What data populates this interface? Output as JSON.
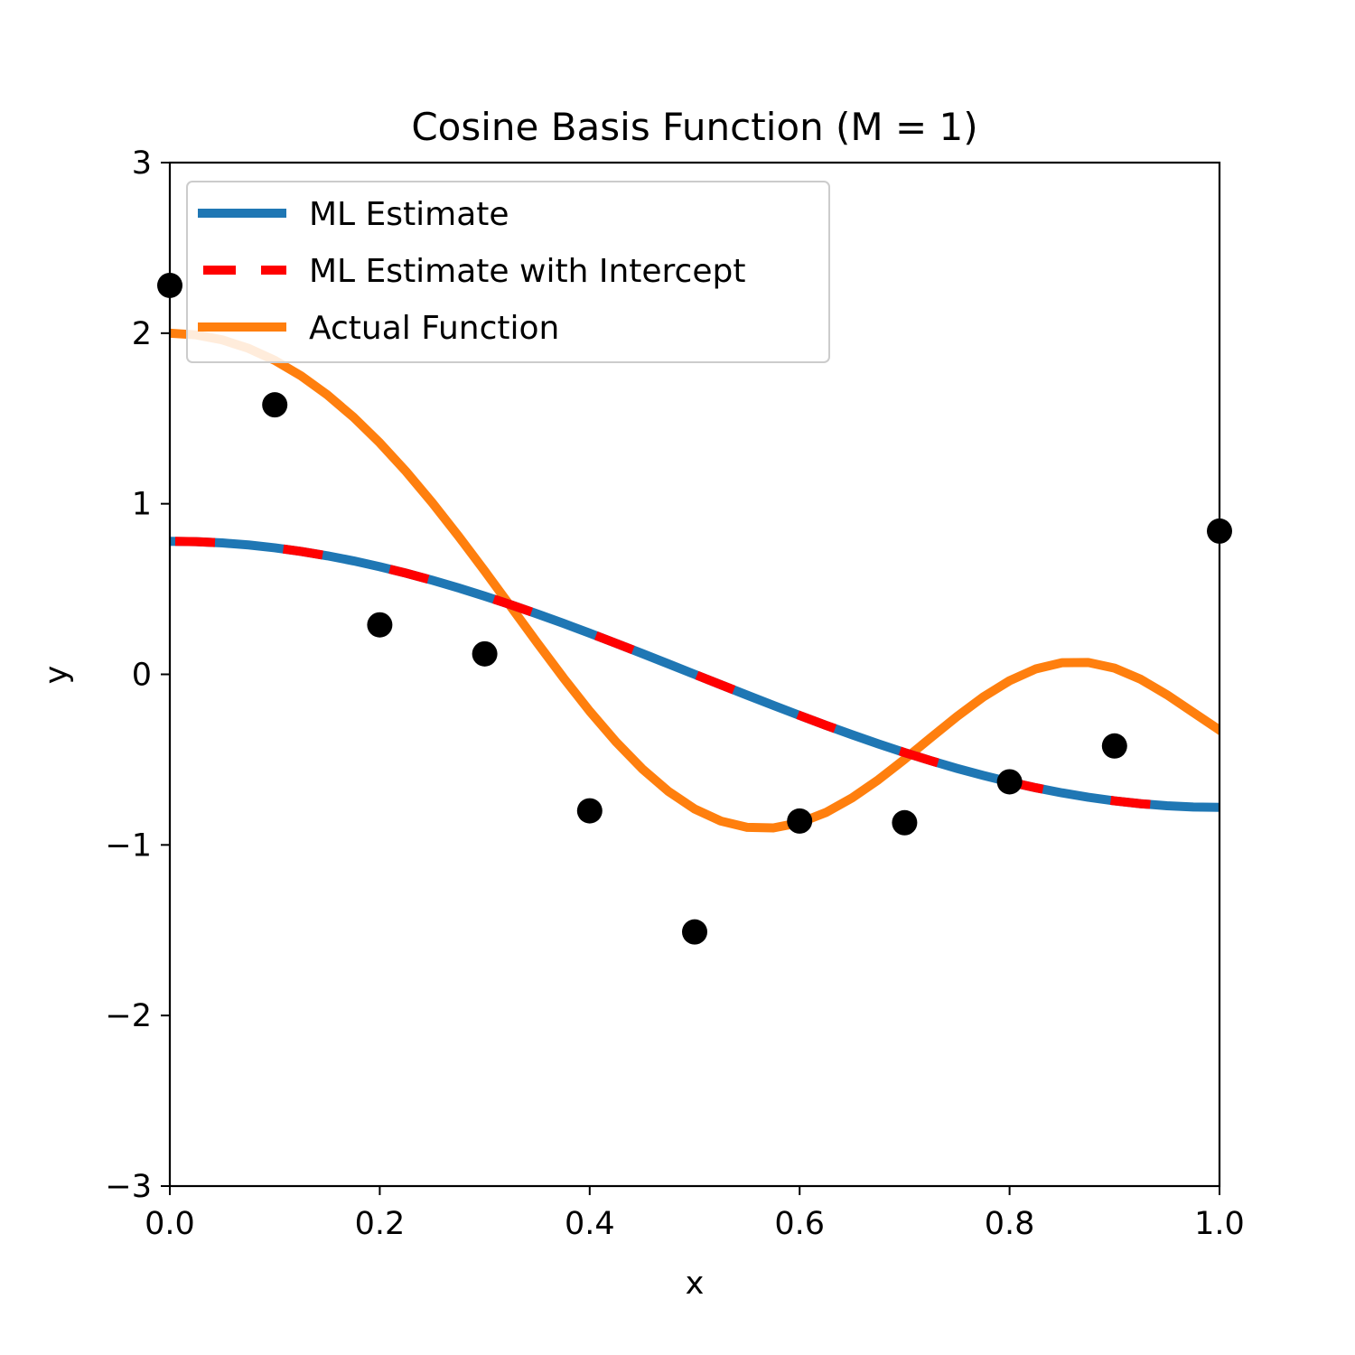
{
  "chart_data": {
    "type": "line",
    "title": "Cosine Basis Function (M = 1)",
    "xlabel": "x",
    "ylabel": "y",
    "xlim": [
      0.0,
      1.0
    ],
    "ylim": [
      -3,
      3
    ],
    "xticks": [
      "0.0",
      "0.2",
      "0.4",
      "0.6",
      "0.8",
      "1.0"
    ],
    "yticks": [
      "-3",
      "-2",
      "-1",
      "0",
      "1",
      "2",
      "3"
    ],
    "grid": false,
    "legend_position": "top-left",
    "x_samples": [
      0.0,
      0.025,
      0.05,
      0.075,
      0.1,
      0.125,
      0.15,
      0.175,
      0.2,
      0.225,
      0.25,
      0.275,
      0.3,
      0.325,
      0.35,
      0.375,
      0.4,
      0.425,
      0.45,
      0.475,
      0.5,
      0.525,
      0.55,
      0.575,
      0.6,
      0.625,
      0.65,
      0.675,
      0.7,
      0.725,
      0.75,
      0.775,
      0.8,
      0.825,
      0.85,
      0.875,
      0.9,
      0.925,
      0.95,
      0.975,
      1.0
    ],
    "series": [
      {
        "name": "ML Estimate",
        "color": "#1f77b4",
        "style": "solid",
        "values": [
          0.78,
          0.7776,
          0.7704,
          0.7585,
          0.7418,
          0.7206,
          0.695,
          0.6651,
          0.631,
          0.593,
          0.5515,
          0.5065,
          0.4585,
          0.4076,
          0.3541,
          0.2987,
          0.241,
          0.1821,
          0.122,
          0.0612,
          0.0,
          -0.0612,
          -0.122,
          -0.1821,
          -0.241,
          -0.2987,
          -0.3541,
          -0.4076,
          -0.4585,
          -0.5065,
          -0.5515,
          -0.593,
          -0.631,
          -0.6651,
          -0.695,
          -0.7206,
          -0.7418,
          -0.7585,
          -0.7704,
          -0.7776,
          -0.78
        ]
      },
      {
        "name": "ML Estimate with Intercept",
        "color": "#ff0000",
        "style": "dashed",
        "values": [
          0.78,
          0.7776,
          0.7704,
          0.7585,
          0.7418,
          0.7206,
          0.695,
          0.6651,
          0.631,
          0.593,
          0.5515,
          0.5065,
          0.4585,
          0.4076,
          0.3541,
          0.2987,
          0.241,
          0.1821,
          0.122,
          0.0612,
          0.0,
          -0.0612,
          -0.122,
          -0.1821,
          -0.241,
          -0.2987,
          -0.3541,
          -0.4076,
          -0.4585,
          -0.5065,
          -0.5515,
          -0.593,
          -0.631,
          -0.6651,
          -0.695,
          -0.7206,
          -0.7418,
          -0.7585,
          -0.7704,
          -0.7776,
          -0.78
        ]
      },
      {
        "name": "Actual Function",
        "color": "#ff7f0e",
        "style": "solid",
        "values": [
          2.0,
          1.9902,
          1.9606,
          1.9108,
          1.8406,
          1.7498,
          1.6386,
          1.5074,
          1.3572,
          1.1894,
          1.0062,
          0.8103,
          0.6054,
          0.3954,
          0.185,
          -0.0208,
          -0.2161,
          -0.3954,
          -0.5536,
          -0.6862,
          -0.7894,
          -0.8603,
          -0.8972,
          -0.9001,
          -0.8701,
          -0.8101,
          -0.7243,
          -0.618,
          -0.4979,
          -0.3713,
          -0.2467,
          -0.1325,
          -0.0374,
          0.0318,
          0.0683,
          0.0696,
          0.0362,
          -0.0293,
          -0.1199,
          -0.2234,
          -0.3266
        ]
      }
    ],
    "scatter": {
      "color": "#000000",
      "x": [
        0.0,
        0.1,
        0.2,
        0.3,
        0.4,
        0.5,
        0.6,
        0.7,
        0.8,
        0.9,
        1.0
      ],
      "y": [
        2.28,
        1.58,
        0.29,
        0.12,
        -0.8,
        -1.51,
        -0.86,
        -0.87,
        -0.63,
        -0.42,
        0.84
      ]
    }
  }
}
